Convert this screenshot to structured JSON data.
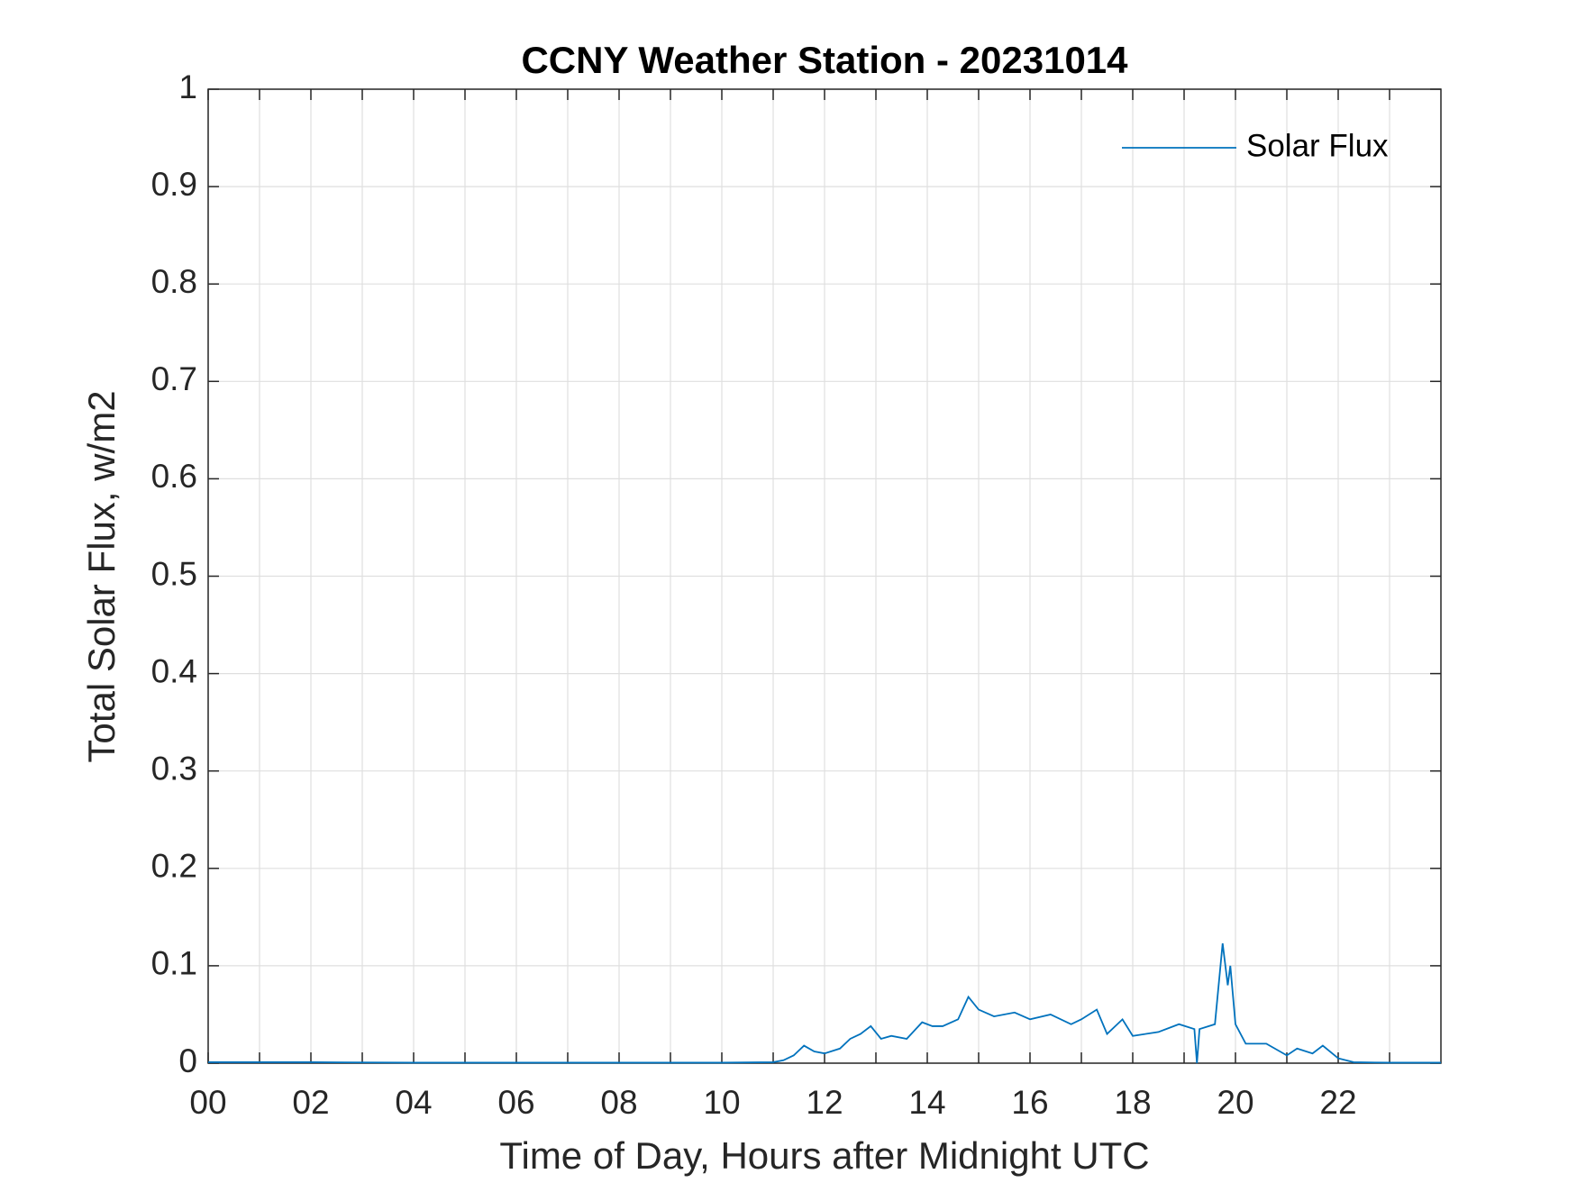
{
  "chart_data": {
    "type": "line",
    "title": "CCNY Weather Station - 20231014",
    "x_label": "Time of Day, Hours after Midnight UTC",
    "y_label": "Total Solar Flux, w/m2",
    "x": [
      0,
      2,
      4,
      6,
      8,
      10,
      11,
      11.2,
      11.4,
      11.6,
      11.8,
      12,
      12.3,
      12.5,
      12.7,
      12.9,
      13.1,
      13.3,
      13.6,
      13.9,
      14.1,
      14.3,
      14.6,
      14.8,
      15.0,
      15.3,
      15.7,
      16.0,
      16.4,
      16.8,
      17.0,
      17.3,
      17.5,
      17.8,
      18.0,
      18.5,
      18.9,
      19.2,
      19.25,
      19.3,
      19.6,
      19.75,
      19.85,
      19.9,
      20.0,
      20.2,
      20.6,
      21.0,
      21.2,
      21.5,
      21.7,
      22.0,
      22.3,
      23,
      24
    ],
    "series": [
      {
        "name": "Solar Flux",
        "color": "#0072bd",
        "values": [
          0.001,
          0.001,
          0.0005,
          0.0005,
          0.0005,
          0.0005,
          0.001,
          0.003,
          0.008,
          0.018,
          0.012,
          0.01,
          0.015,
          0.025,
          0.03,
          0.038,
          0.025,
          0.028,
          0.025,
          0.042,
          0.038,
          0.038,
          0.045,
          0.068,
          0.055,
          0.048,
          0.052,
          0.045,
          0.05,
          0.04,
          0.045,
          0.055,
          0.03,
          0.045,
          0.028,
          0.032,
          0.04,
          0.035,
          0.0,
          0.035,
          0.04,
          0.123,
          0.08,
          0.1,
          0.04,
          0.02,
          0.02,
          0.008,
          0.015,
          0.01,
          0.018,
          0.005,
          0.001,
          0.0005,
          0.0005
        ]
      }
    ],
    "xlim": [
      0,
      24
    ],
    "xticks": [
      {
        "value": 0,
        "label": "00"
      },
      {
        "value": 2,
        "label": "02"
      },
      {
        "value": 4,
        "label": "04"
      },
      {
        "value": 6,
        "label": "06"
      },
      {
        "value": 8,
        "label": "08"
      },
      {
        "value": 10,
        "label": "10"
      },
      {
        "value": 12,
        "label": "12"
      },
      {
        "value": 14,
        "label": "14"
      },
      {
        "value": 16,
        "label": "16"
      },
      {
        "value": 18,
        "label": "18"
      },
      {
        "value": 20,
        "label": "20"
      },
      {
        "value": 22,
        "label": "22"
      }
    ],
    "xminorticks": [
      1,
      3,
      5,
      7,
      9,
      11,
      13,
      15,
      17,
      19,
      21,
      23
    ],
    "ylim": [
      0,
      1
    ],
    "yticks": [
      0,
      0.1,
      0.2,
      0.3,
      0.4,
      0.5,
      0.6,
      0.7,
      0.8,
      0.9,
      1
    ],
    "grid": true,
    "legend": "northeast"
  }
}
